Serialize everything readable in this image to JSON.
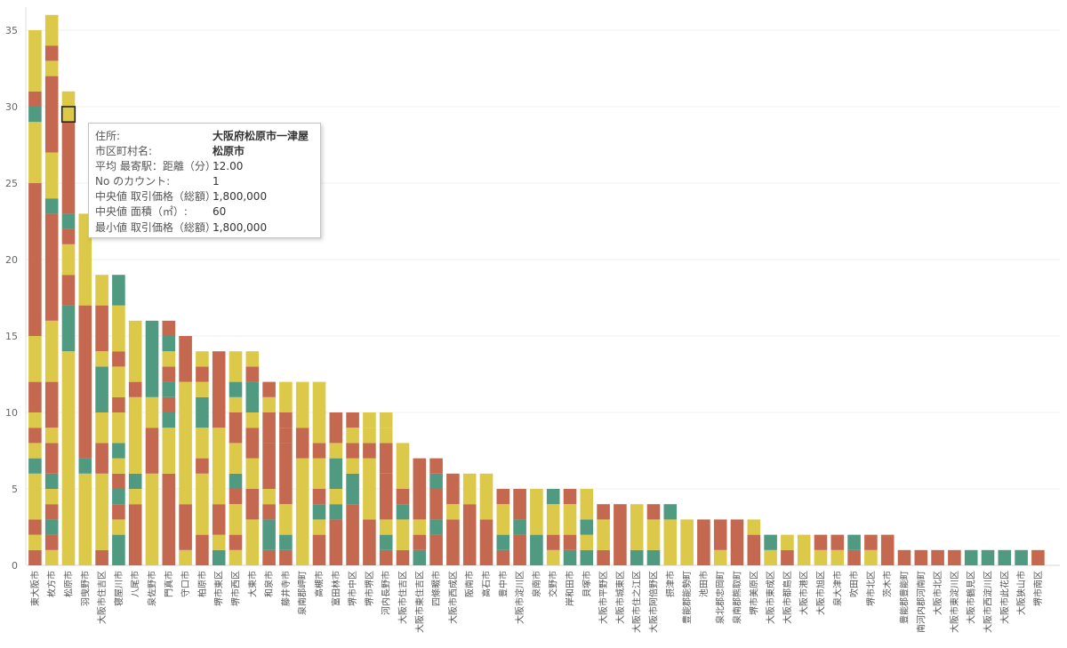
{
  "chart_data": {
    "type": "bar",
    "stacked": true,
    "ylim": [
      0,
      36
    ],
    "yticks": [
      0,
      5,
      10,
      15,
      20,
      25,
      30,
      35
    ],
    "grid": true,
    "colors": {
      "Y": "#dcc94a",
      "R": "#c4694f",
      "G": "#4f9a80"
    },
    "categories": [
      {
        "name": "東大阪市",
        "segments": [
          [
            "R",
            1
          ],
          [
            "Y",
            1
          ],
          [
            "R",
            1
          ],
          [
            "Y",
            3
          ],
          [
            "G",
            1
          ],
          [
            "Y",
            1
          ],
          [
            "R",
            1
          ],
          [
            "Y",
            1
          ],
          [
            "R",
            2
          ],
          [
            "Y",
            3
          ],
          [
            "R",
            10
          ],
          [
            "Y",
            4
          ],
          [
            "G",
            1
          ],
          [
            "R",
            1
          ],
          [
            "Y",
            4
          ]
        ]
      },
      {
        "name": "枚方市",
        "segments": [
          [
            "Y",
            1
          ],
          [
            "R",
            1
          ],
          [
            "G",
            1
          ],
          [
            "R",
            1
          ],
          [
            "Y",
            1
          ],
          [
            "G",
            1
          ],
          [
            "R",
            2
          ],
          [
            "Y",
            1
          ],
          [
            "R",
            3
          ],
          [
            "Y",
            4
          ],
          [
            "R",
            7
          ],
          [
            "G",
            1
          ],
          [
            "Y",
            3
          ],
          [
            "R",
            5
          ],
          [
            "Y",
            1
          ],
          [
            "R",
            1
          ],
          [
            "Y",
            2
          ]
        ]
      },
      {
        "name": "松原市",
        "segments": [
          [
            "Y",
            14
          ],
          [
            "G",
            3
          ],
          [
            "R",
            2
          ],
          [
            "Y",
            2
          ],
          [
            "R",
            1
          ],
          [
            "G",
            1
          ],
          [
            "R",
            7
          ],
          [
            "Y",
            1
          ]
        ]
      },
      {
        "name": "羽曳野市",
        "segments": [
          [
            "Y",
            6
          ],
          [
            "G",
            1
          ],
          [
            "R",
            10
          ],
          [
            "Y",
            6
          ]
        ]
      },
      {
        "name": "大阪市住吉区",
        "segments": [
          [
            "R",
            1
          ],
          [
            "Y",
            5
          ],
          [
            "R",
            2
          ],
          [
            "Y",
            2
          ],
          [
            "G",
            3
          ],
          [
            "Y",
            1
          ],
          [
            "R",
            3
          ],
          [
            "Y",
            2
          ]
        ]
      },
      {
        "name": "寝屋川市",
        "segments": [
          [
            "G",
            2
          ],
          [
            "Y",
            1
          ],
          [
            "R",
            1
          ],
          [
            "G",
            1
          ],
          [
            "R",
            1
          ],
          [
            "Y",
            1
          ],
          [
            "G",
            1
          ],
          [
            "Y",
            2
          ],
          [
            "R",
            1
          ],
          [
            "Y",
            2
          ],
          [
            "R",
            1
          ],
          [
            "Y",
            3
          ],
          [
            "G",
            2
          ]
        ]
      },
      {
        "name": "八尾市",
        "segments": [
          [
            "R",
            4
          ],
          [
            "Y",
            1
          ],
          [
            "G",
            1
          ],
          [
            "Y",
            5
          ],
          [
            "R",
            1
          ],
          [
            "Y",
            4
          ]
        ]
      },
      {
        "name": "泉佐野市",
        "segments": [
          [
            "Y",
            6
          ],
          [
            "R",
            3
          ],
          [
            "Y",
            2
          ],
          [
            "G",
            5
          ]
        ]
      },
      {
        "name": "門真市",
        "segments": [
          [
            "R",
            6
          ],
          [
            "Y",
            3
          ],
          [
            "G",
            1
          ],
          [
            "R",
            1
          ],
          [
            "G",
            1
          ],
          [
            "R",
            1
          ],
          [
            "Y",
            1
          ],
          [
            "G",
            1
          ],
          [
            "R",
            1
          ]
        ]
      },
      {
        "name": "守口市",
        "segments": [
          [
            "Y",
            1
          ],
          [
            "R",
            3
          ],
          [
            "Y",
            8
          ],
          [
            "R",
            3
          ]
        ]
      },
      {
        "name": "柏原市",
        "segments": [
          [
            "R",
            2
          ],
          [
            "Y",
            4
          ],
          [
            "R",
            1
          ],
          [
            "Y",
            2
          ],
          [
            "G",
            2
          ],
          [
            "Y",
            1
          ],
          [
            "R",
            1
          ],
          [
            "Y",
            1
          ]
        ]
      },
      {
        "name": "堺市東区",
        "segments": [
          [
            "G",
            1
          ],
          [
            "Y",
            1
          ],
          [
            "R",
            2
          ],
          [
            "Y",
            5
          ],
          [
            "R",
            5
          ]
        ]
      },
      {
        "name": "堺市西区",
        "segments": [
          [
            "Y",
            1
          ],
          [
            "R",
            1
          ],
          [
            "Y",
            2
          ],
          [
            "R",
            1
          ],
          [
            "G",
            1
          ],
          [
            "Y",
            2
          ],
          [
            "R",
            2
          ],
          [
            "Y",
            1
          ],
          [
            "G",
            1
          ],
          [
            "Y",
            2
          ]
        ]
      },
      {
        "name": "大東市",
        "segments": [
          [
            "Y",
            3
          ],
          [
            "R",
            2
          ],
          [
            "Y",
            2
          ],
          [
            "R",
            2
          ],
          [
            "Y",
            1
          ],
          [
            "G",
            2
          ],
          [
            "R",
            1
          ],
          [
            "Y",
            1
          ]
        ]
      },
      {
        "name": "和泉市",
        "segments": [
          [
            "R",
            1
          ],
          [
            "G",
            2
          ],
          [
            "R",
            1
          ],
          [
            "Y",
            1
          ],
          [
            "R",
            3
          ],
          [
            "R",
            2
          ],
          [
            "Y",
            1
          ],
          [
            "R",
            1
          ]
        ]
      },
      {
        "name": "藤井寺市",
        "segments": [
          [
            "R",
            1
          ],
          [
            "G",
            1
          ],
          [
            "Y",
            2
          ],
          [
            "R",
            4
          ],
          [
            "R",
            1
          ],
          [
            "R",
            1
          ],
          [
            "Y",
            2
          ]
        ]
      },
      {
        "name": "泉南郡岬町",
        "segments": [
          [
            "Y",
            7
          ],
          [
            "R",
            2
          ],
          [
            "Y",
            3
          ]
        ]
      },
      {
        "name": "高槻市",
        "segments": [
          [
            "R",
            2
          ],
          [
            "Y",
            1
          ],
          [
            "G",
            1
          ],
          [
            "R",
            1
          ],
          [
            "Y",
            2
          ],
          [
            "R",
            1
          ],
          [
            "Y",
            4
          ]
        ]
      },
      {
        "name": "富田林市",
        "segments": [
          [
            "R",
            3
          ],
          [
            "G",
            1
          ],
          [
            "Y",
            1
          ],
          [
            "G",
            2
          ],
          [
            "Y",
            1
          ],
          [
            "R",
            2
          ]
        ]
      },
      {
        "name": "堺市中区",
        "segments": [
          [
            "R",
            4
          ],
          [
            "G",
            2
          ],
          [
            "Y",
            1
          ],
          [
            "R",
            1
          ],
          [
            "Y",
            1
          ],
          [
            "R",
            1
          ]
        ]
      },
      {
        "name": "堺市堺区",
        "segments": [
          [
            "R",
            3
          ],
          [
            "Y",
            4
          ],
          [
            "R",
            1
          ],
          [
            "Y",
            1
          ],
          [
            "Y",
            1
          ]
        ]
      },
      {
        "name": "河内長野市",
        "segments": [
          [
            "R",
            1
          ],
          [
            "G",
            1
          ],
          [
            "Y",
            1
          ],
          [
            "R",
            3
          ],
          [
            "R",
            2
          ],
          [
            "Y",
            1
          ],
          [
            "Y",
            1
          ]
        ]
      },
      {
        "name": "大阪市住吉区",
        "segments": [
          [
            "R",
            1
          ],
          [
            "Y",
            2
          ],
          [
            "G",
            1
          ],
          [
            "R",
            1
          ],
          [
            "Y",
            3
          ]
        ]
      },
      {
        "name": "大阪市東住吉区",
        "segments": [
          [
            "G",
            1
          ],
          [
            "R",
            1
          ],
          [
            "Y",
            1
          ],
          [
            "R",
            4
          ]
        ]
      },
      {
        "name": "四條畷市",
        "segments": [
          [
            "R",
            2
          ],
          [
            "G",
            1
          ],
          [
            "R",
            2
          ],
          [
            "G",
            1
          ],
          [
            "R",
            1
          ]
        ]
      },
      {
        "name": "大阪市西成区",
        "segments": [
          [
            "R",
            3
          ],
          [
            "Y",
            1
          ],
          [
            "R",
            2
          ]
        ]
      },
      {
        "name": "阪南市",
        "segments": [
          [
            "R",
            4
          ],
          [
            "Y",
            2
          ]
        ]
      },
      {
        "name": "高石市",
        "segments": [
          [
            "R",
            3
          ],
          [
            "Y",
            3
          ]
        ]
      },
      {
        "name": "豊中市",
        "segments": [
          [
            "R",
            1
          ],
          [
            "G",
            1
          ],
          [
            "Y",
            2
          ],
          [
            "R",
            1
          ]
        ]
      },
      {
        "name": "大阪市淀川区",
        "segments": [
          [
            "R",
            2
          ],
          [
            "G",
            1
          ],
          [
            "R",
            2
          ]
        ]
      },
      {
        "name": "泉南市",
        "segments": [
          [
            "G",
            2
          ],
          [
            "Y",
            3
          ]
        ]
      },
      {
        "name": "交野市",
        "segments": [
          [
            "Y",
            1
          ],
          [
            "R",
            1
          ],
          [
            "Y",
            2
          ],
          [
            "G",
            1
          ]
        ]
      },
      {
        "name": "岸和田市",
        "segments": [
          [
            "G",
            1
          ],
          [
            "R",
            1
          ],
          [
            "Y",
            2
          ],
          [
            "R",
            1
          ]
        ]
      },
      {
        "name": "貝塚市",
        "segments": [
          [
            "G",
            1
          ],
          [
            "Y",
            1
          ],
          [
            "G",
            1
          ],
          [
            "Y",
            2
          ]
        ]
      },
      {
        "name": "大阪市平野区",
        "segments": [
          [
            "R",
            1
          ],
          [
            "Y",
            2
          ],
          [
            "R",
            1
          ]
        ]
      },
      {
        "name": "大阪市城東区",
        "segments": [
          [
            "R",
            4
          ]
        ]
      },
      {
        "name": "大阪市住之江区",
        "segments": [
          [
            "G",
            1
          ],
          [
            "Y",
            3
          ]
        ]
      },
      {
        "name": "大阪市阿倍野区",
        "segments": [
          [
            "G",
            1
          ],
          [
            "Y",
            2
          ],
          [
            "R",
            1
          ]
        ]
      },
      {
        "name": "摂津市",
        "segments": [
          [
            "Y",
            3
          ],
          [
            "G",
            1
          ]
        ]
      },
      {
        "name": "豊能郡能勢町",
        "segments": [
          [
            "Y",
            3
          ]
        ]
      },
      {
        "name": "池田市",
        "segments": [
          [
            "R",
            3
          ]
        ]
      },
      {
        "name": "泉北郡忠岡町",
        "segments": [
          [
            "Y",
            1
          ],
          [
            "R",
            2
          ]
        ]
      },
      {
        "name": "泉南郡熊取町",
        "segments": [
          [
            "R",
            3
          ]
        ]
      },
      {
        "name": "堺市美原区",
        "segments": [
          [
            "R",
            2
          ],
          [
            "Y",
            1
          ]
        ]
      },
      {
        "name": "大阪市東成区",
        "segments": [
          [
            "Y",
            1
          ],
          [
            "G",
            1
          ]
        ]
      },
      {
        "name": "大阪市都島区",
        "segments": [
          [
            "R",
            1
          ],
          [
            "Y",
            1
          ]
        ]
      },
      {
        "name": "大阪市港区",
        "segments": [
          [
            "Y",
            2
          ]
        ]
      },
      {
        "name": "大阪市旭区",
        "segments": [
          [
            "Y",
            1
          ],
          [
            "R",
            1
          ]
        ]
      },
      {
        "name": "泉大津市",
        "segments": [
          [
            "Y",
            1
          ],
          [
            "R",
            1
          ]
        ]
      },
      {
        "name": "吹田市",
        "segments": [
          [
            "R",
            1
          ],
          [
            "G",
            1
          ]
        ]
      },
      {
        "name": "堺市北区",
        "segments": [
          [
            "Y",
            1
          ],
          [
            "R",
            1
          ]
        ]
      },
      {
        "name": "茨木市",
        "segments": [
          [
            "R",
            2
          ]
        ]
      },
      {
        "name": "豊能郡豊能町",
        "segments": [
          [
            "R",
            1
          ]
        ]
      },
      {
        "name": "南河内郡河南町",
        "segments": [
          [
            "R",
            1
          ]
        ]
      },
      {
        "name": "大阪市北区",
        "segments": [
          [
            "R",
            1
          ]
        ]
      },
      {
        "name": "大阪市東淀川区",
        "segments": [
          [
            "R",
            1
          ]
        ]
      },
      {
        "name": "大阪市鶴見区",
        "segments": [
          [
            "G",
            1
          ]
        ]
      },
      {
        "name": "大阪市西淀川区",
        "segments": [
          [
            "G",
            1
          ]
        ]
      },
      {
        "name": "大阪市此花区",
        "segments": [
          [
            "G",
            1
          ]
        ]
      },
      {
        "name": "大阪狭山市",
        "segments": [
          [
            "G",
            1
          ]
        ]
      },
      {
        "name": "堺市南区",
        "segments": [
          [
            "R",
            1
          ]
        ]
      }
    ],
    "highlight": {
      "category_index": 2,
      "segment_value_from": 29,
      "segment_value_to": 30
    }
  },
  "tooltip": {
    "rows": [
      {
        "key": "住所:",
        "value": "大阪府松原市一津屋",
        "bold": true
      },
      {
        "key": "市区町村名:",
        "value": "松原市",
        "bold": true
      },
      {
        "key": "平均 最寄駅：距離（分）:",
        "value": "12.00",
        "bold": false
      },
      {
        "key": "No のカウント:",
        "value": "1",
        "bold": false
      },
      {
        "key": "中央値 取引価格（総額）:",
        "value": "1,800,000",
        "bold": false
      },
      {
        "key": "中央値 面積（㎡）:",
        "value": "60",
        "bold": false
      },
      {
        "key": "最小値 取引価格（総額）:",
        "value": "1,800,000",
        "bold": false
      }
    ]
  }
}
